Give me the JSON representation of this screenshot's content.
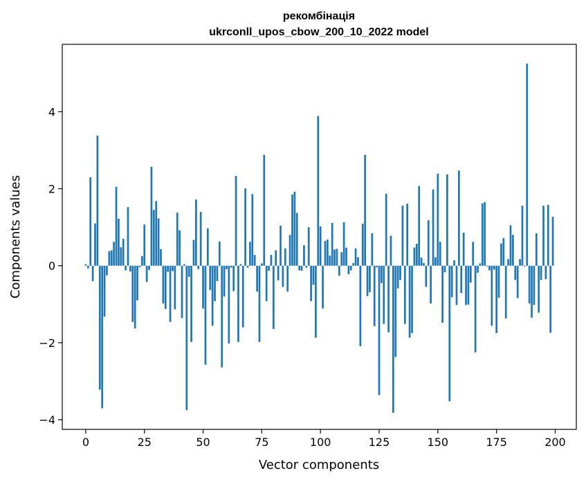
{
  "chart_data": {
    "type": "bar",
    "title": [
      "рекомбінація",
      "ukrconll_upos_cbow_200_10_2022 model"
    ],
    "xlabel": "Vector components",
    "ylabel": "Components values",
    "xlim": [
      -10,
      209
    ],
    "ylim": [
      -4.25,
      5.75
    ],
    "xticks": [
      0,
      25,
      50,
      75,
      100,
      125,
      150,
      175,
      200
    ],
    "xtick_labels": [
      "0",
      "25",
      "50",
      "75",
      "100",
      "125",
      "150",
      "175",
      "200"
    ],
    "yticks": [
      -4,
      -2,
      0,
      2,
      4
    ],
    "ytick_labels": [
      "−4",
      "−2",
      "0",
      "2",
      "4"
    ],
    "grid": false,
    "color": "#1f77b4",
    "values": [
      0.04,
      -0.07,
      2.3,
      -0.4,
      1.1,
      3.38,
      -3.22,
      -3.7,
      -1.32,
      -0.25,
      0.38,
      0.4,
      0.62,
      2.05,
      1.22,
      0.48,
      0.7,
      -0.12,
      1.52,
      -0.15,
      -1.46,
      -1.63,
      -0.9,
      -0.04,
      0.25,
      1.07,
      -0.42,
      -0.11,
      2.57,
      1.45,
      1.68,
      1.23,
      0.43,
      -0.98,
      -1.12,
      -0.16,
      -1.46,
      -0.14,
      -1.13,
      1.38,
      0.92,
      -1.36,
      0.04,
      -3.75,
      -0.29,
      -1.98,
      0.67,
      1.72,
      -0.09,
      1.4,
      -1.11,
      -2.57,
      0.97,
      -0.63,
      -1.56,
      -0.92,
      -0.4,
      0.63,
      -2.64,
      -0.8,
      -0.09,
      -2.02,
      -0.05,
      -0.66,
      2.33,
      -1.98,
      0.04,
      -1.6,
      2.01,
      -0.05,
      0.62,
      1.86,
      0.28,
      -0.67,
      -1.98,
      0.06,
      2.88,
      -0.92,
      -0.13,
      0.28,
      -1.64,
      0.4,
      -0.38,
      1.04,
      -0.55,
      0.45,
      -0.67,
      0.8,
      1.85,
      1.92,
      1.37,
      -0.12,
      -0.13,
      0.53,
      -0.05,
      1.0,
      -0.92,
      -0.49,
      -1.87,
      3.89,
      1.02,
      -1.11,
      0.64,
      0.68,
      0.26,
      1.11,
      0.42,
      0.44,
      -0.26,
      0.35,
      1.13,
      0.47,
      -0.22,
      -0.12,
      0.07,
      0.45,
      0.22,
      -2.09,
      1.09,
      2.88,
      -0.79,
      -0.69,
      0.84,
      -1.57,
      -0.04,
      -3.36,
      -0.45,
      -1.51,
      1.87,
      -1.73,
      0.78,
      -3.82,
      -2.37,
      -0.59,
      -0.37,
      1.56,
      -1.51,
      1.61,
      -1.87,
      -1.75,
      0.47,
      0.57,
      2.07,
      0.21,
      0.07,
      -0.55,
      1.18,
      -0.98,
      1.98,
      0.22,
      2.39,
      0.62,
      -1.48,
      -0.17,
      2.37,
      -3.52,
      -0.82,
      0.14,
      -1.02,
      2.47,
      -0.71,
      0.86,
      -1.02,
      -1.01,
      -0.44,
      0.62,
      -2.25,
      -0.18,
      0.06,
      1.62,
      1.65,
      -0.02,
      -0.12,
      -1.56,
      -0.1,
      -1.75,
      -0.83,
      0.58,
      0.72,
      -1.37,
      0.17,
      1.05,
      0.8,
      -0.37,
      -0.84,
      0.17,
      1.56,
      -0.02,
      5.25,
      -0.98,
      -1.35,
      -1.02,
      0.84,
      -1.22,
      -0.37,
      1.56,
      -0.35,
      1.58,
      -1.74,
      1.27
    ]
  }
}
